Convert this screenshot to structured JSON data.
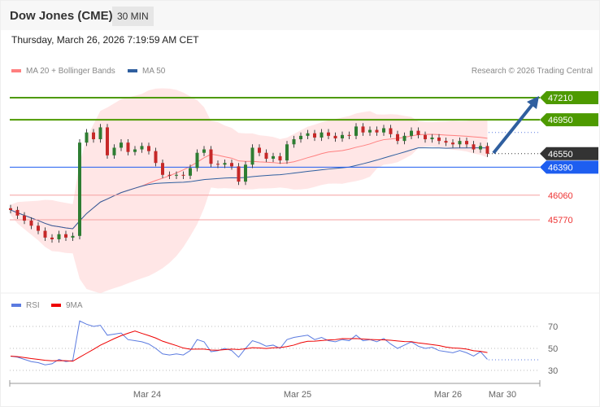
{
  "header": {
    "title": "Dow Jones (CME)",
    "timeframe": "30 MIN"
  },
  "timestamp": "Thursday, March 26, 2026 7:19:59 AM CET",
  "legend": {
    "ma20": "MA 20 + Bollinger Bands",
    "ma50": "MA 50",
    "ma20_color": "#ff7f7f",
    "ma50_color": "#2f5f9f"
  },
  "copyright": "Research © 2026 Trading Central",
  "rsi_legend": {
    "rsi": "RSI",
    "ma": "9MA",
    "rsi_color": "#5b7be0",
    "ma_color": "#ee0000"
  },
  "levels": [
    {
      "value": 47210,
      "label": "47210",
      "kind": "resistance",
      "color": "#4d9a00"
    },
    {
      "value": 46950,
      "label": "46950",
      "kind": "resistance",
      "color": "#4d9a00"
    },
    {
      "value": 46550,
      "label": "46550",
      "kind": "last",
      "color": "#333333"
    },
    {
      "value": 46390,
      "label": "46390",
      "kind": "pivot",
      "color": "#1e5ef0"
    },
    {
      "value": 46060,
      "label": "46060",
      "kind": "support",
      "color": "#ee3333"
    },
    {
      "value": 45770,
      "label": "45770",
      "kind": "support",
      "color": "#ee3333"
    }
  ],
  "chart_data": {
    "type": "candlestick",
    "closes": [
      45886,
      45820,
      45760,
      45700,
      45640,
      45560,
      45540,
      45600,
      45560,
      45580,
      46680,
      46800,
      46720,
      46860,
      46530,
      46620,
      46680,
      46570,
      46600,
      46640,
      46580,
      46440,
      46300,
      46290,
      46300,
      46290,
      46380,
      46560,
      46600,
      46430,
      46420,
      46440,
      46400,
      46220,
      46420,
      46620,
      46560,
      46490,
      46520,
      46470,
      46660,
      46720,
      46760,
      46790,
      46740,
      46800,
      46760,
      46730,
      46770,
      46760,
      46870,
      46800,
      46830,
      46800,
      46850,
      46780,
      46700,
      46760,
      46820,
      46770,
      46720,
      46740,
      46700,
      46680,
      46660,
      46700,
      46660,
      46600,
      46640,
      46550
    ],
    "rsi": [
      43,
      42,
      40,
      38,
      37,
      35,
      36,
      40,
      38,
      39,
      75,
      72,
      70,
      71,
      62,
      63,
      64,
      58,
      57,
      56,
      54,
      50,
      45,
      44,
      45,
      44,
      48,
      58,
      56,
      47,
      48,
      50,
      48,
      42,
      50,
      57,
      55,
      52,
      53,
      50,
      58,
      60,
      61,
      62,
      58,
      60,
      57,
      56,
      58,
      57,
      62,
      57,
      58,
      56,
      59,
      54,
      50,
      53,
      56,
      52,
      50,
      51,
      48,
      47,
      46,
      48,
      46,
      43,
      47,
      40
    ],
    "rsi_levels": [
      70,
      50,
      30
    ],
    "x_ticks": [
      "Mar 24",
      "Mar 25",
      "Mar 26",
      "Mar 30"
    ],
    "forecast": "up-arrow to 47210"
  }
}
